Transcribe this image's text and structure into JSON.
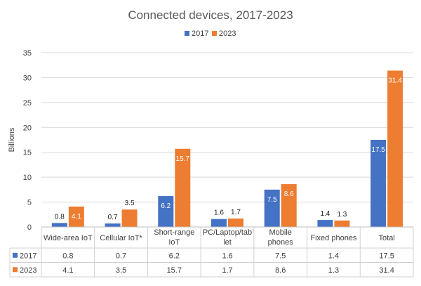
{
  "chart_data": {
    "type": "bar",
    "title": "Connected devices, 2017-2023",
    "ylabel": "Billions",
    "ylim": [
      0,
      35
    ],
    "yticks": [
      0,
      5,
      10,
      15,
      20,
      25,
      30,
      35
    ],
    "grid": true,
    "legend_position": "top",
    "categories": [
      [
        "Wide-area IoT"
      ],
      [
        "Cellular IoT*"
      ],
      [
        "Short-range",
        "IoT"
      ],
      [
        "PC/Laptop/tab",
        "let"
      ],
      [
        "Mobile",
        "phones"
      ],
      [
        "Fixed phones"
      ],
      [
        "Total"
      ]
    ],
    "series": [
      {
        "name": "2017",
        "color": "#4472C4",
        "values": [
          0.8,
          0.7,
          6.2,
          1.6,
          7.5,
          1.4,
          17.5
        ]
      },
      {
        "name": "2023",
        "color": "#ED7D31",
        "values": [
          4.1,
          3.5,
          15.7,
          1.7,
          8.6,
          1.3,
          31.4
        ]
      }
    ],
    "data_table": true
  }
}
